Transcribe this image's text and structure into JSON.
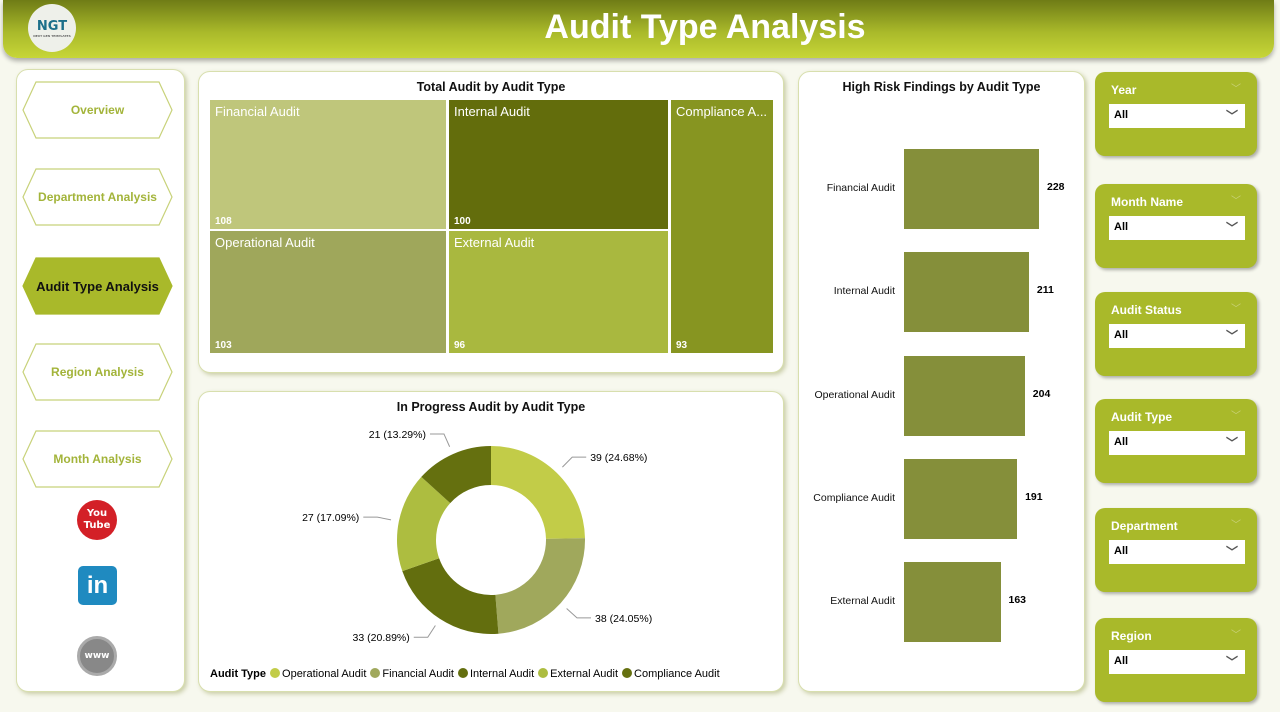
{
  "header": {
    "title": "Audit Type Analysis",
    "logo_text": "NGT",
    "logo_subtext": "NEXT GEN TEMPLATES"
  },
  "nav": {
    "items": [
      {
        "label": "Overview",
        "active": false
      },
      {
        "label": "Department Analysis",
        "active": false
      },
      {
        "label": "Audit Type Analysis",
        "active": true
      },
      {
        "label": "Region Analysis",
        "active": false
      },
      {
        "label": "Month Analysis",
        "active": false
      }
    ],
    "social": [
      {
        "icon": "youtube-icon",
        "text": "You Tube"
      },
      {
        "icon": "linkedin-icon",
        "text": "in"
      },
      {
        "icon": "globe-www-icon",
        "text": "www"
      }
    ]
  },
  "treemap": {
    "title": "Total Audit by Audit Type",
    "items": [
      {
        "name": "Financial Audit",
        "value": "108",
        "color": "#bfc67b"
      },
      {
        "name": "Internal Audit",
        "value": "100",
        "color": "#636d0c"
      },
      {
        "name": "Compliance A...",
        "value": "93",
        "color": "#879521"
      },
      {
        "name": "Operational Audit",
        "value": "103",
        "color": "#9fa75b"
      },
      {
        "name": "External Audit",
        "value": "96",
        "color": "#a9b83f"
      }
    ]
  },
  "chart_data": [
    {
      "type": "donut",
      "title": "In Progress Audit by Audit Type",
      "legend_title": "Audit Type",
      "legend_position": "bottom",
      "slices": [
        {
          "name": "Operational Audit",
          "value": 39,
          "label": "39 (24.68%)",
          "color": "#c2cc48"
        },
        {
          "name": "Financial Audit",
          "value": 38,
          "label": "38 (24.05%)",
          "color": "#a0a85c"
        },
        {
          "name": "Internal Audit",
          "value": 33,
          "label": "33 (20.89%)",
          "color": "#636e0e"
        },
        {
          "name": "External Audit",
          "value": 27,
          "label": "27 (17.09%)",
          "color": "#adbd40"
        },
        {
          "name": "Compliance Audit",
          "value": 21,
          "label": "21 (13.29%)",
          "color": "#65700f"
        }
      ]
    },
    {
      "type": "bar",
      "orientation": "horizontal",
      "title": "High Risk Findings by Audit Type",
      "categories": [
        "Financial Audit",
        "Internal Audit",
        "Operational Audit",
        "Compliance Audit",
        "External Audit"
      ],
      "values": [
        228,
        211,
        204,
        191,
        163
      ],
      "color": "#858f3a"
    }
  ],
  "filters": [
    {
      "label": "Year",
      "value": "All"
    },
    {
      "label": "Month Name",
      "value": "All"
    },
    {
      "label": "Audit Status",
      "value": "All"
    },
    {
      "label": "Audit Type",
      "value": "All"
    },
    {
      "label": "Department",
      "value": "All"
    },
    {
      "label": "Region",
      "value": "All"
    }
  ]
}
